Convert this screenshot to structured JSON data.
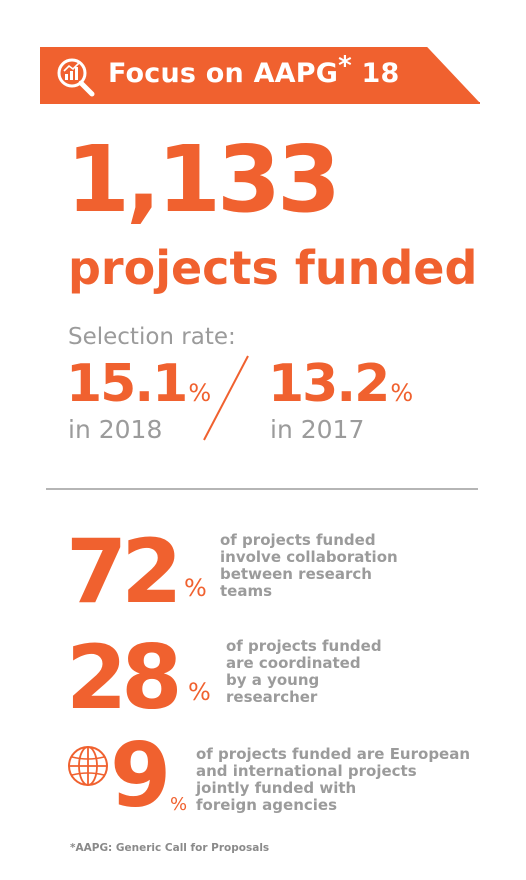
{
  "header": {
    "title": "Focus on AAPG",
    "asterisk": "*",
    "year": "18",
    "icon": "magnifier-chart-icon"
  },
  "headline": {
    "number": "1,133",
    "caption": "projects funded"
  },
  "selection_rate": {
    "label": "Selection rate:",
    "current": {
      "value": "15.1",
      "unit": "%",
      "year_label": "in 2018"
    },
    "previous": {
      "value": "13.2",
      "unit": "%",
      "year_label": "in 2017"
    }
  },
  "stats": [
    {
      "value": "72",
      "unit": "%",
      "lines": [
        "of projects funded",
        "involve collaboration",
        "between research",
        "teams"
      ]
    },
    {
      "value": "28",
      "unit": "%",
      "lines": [
        "of projects funded",
        "are coordinated",
        "by a young",
        "researcher"
      ]
    },
    {
      "value": "9",
      "unit": "%",
      "icon": "globe-icon",
      "lines": [
        "of projects funded are European",
        "and international projects",
        "jointly funded with",
        "foreign agencies"
      ]
    }
  ],
  "footnote": "*AAPG: Generic Call for Proposals",
  "colors": {
    "accent": "#f0612f",
    "grey_text": "#9b9b9b",
    "divider": "#b5b5b5",
    "banner_text": "#ffffff"
  }
}
